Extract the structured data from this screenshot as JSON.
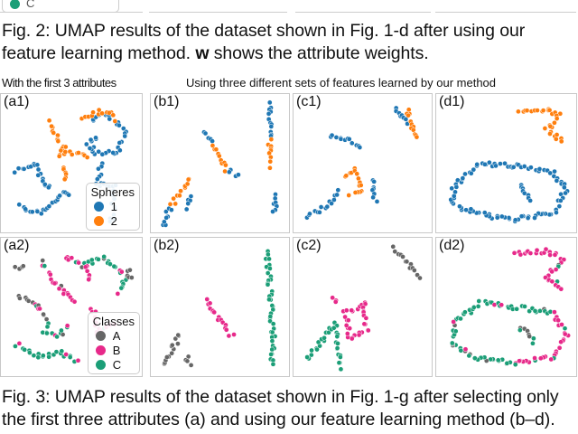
{
  "top_fragment": {
    "legend_entry": "C"
  },
  "fig2_caption": {
    "line1": "Fig. 2: UMAP results of the dataset shown in Fig. 1-d after using our",
    "line2_pre": "feature learning method. ",
    "line2_bold": "w",
    "line2_post": " shows the attribute weights."
  },
  "headers": {
    "left": "With the first 3 attributes",
    "right": "Using three different sets of features learned by our method"
  },
  "colors": {
    "sphere_1": "#1f77b4",
    "sphere_2": "#ff7f0e",
    "class_A": "#666666",
    "class_B": "#e7298a",
    "class_C": "#1b9e77"
  },
  "legends": {
    "spheres": {
      "title": "Spheres",
      "items": [
        "1",
        "2"
      ]
    },
    "classes": {
      "title": "Classes",
      "items": [
        "A",
        "B",
        "C"
      ]
    }
  },
  "chart_data": [
    {
      "type": "scatter",
      "panel": "(a1)",
      "color_by": "spheres",
      "strokes": [
        {
          "c": 0,
          "p": [
            [
              0.8,
              5.5
            ],
            [
              2.2,
              5.0
            ],
            [
              2.8,
              6.5
            ],
            [
              3.5,
              7.0
            ]
          ]
        },
        {
          "c": 0,
          "p": [
            [
              1,
              8.2
            ],
            [
              2,
              8.8
            ],
            [
              3,
              8.6
            ],
            [
              4.2,
              7.2
            ],
            [
              5,
              7.5
            ]
          ]
        },
        {
          "c": 0,
          "p": [
            [
              6.5,
              1.5
            ],
            [
              7.8,
              1.2
            ],
            [
              9,
              2.5
            ],
            [
              8.5,
              4.0
            ],
            [
              7,
              4.2
            ],
            [
              6,
              3.5
            ],
            [
              7,
              2.8
            ]
          ]
        },
        {
          "c": 0,
          "p": [
            [
              7.2,
              5.0
            ],
            [
              6.8,
              6.5
            ],
            [
              8.2,
              6.8
            ],
            [
              8,
              9.8
            ]
          ]
        },
        {
          "c": 1,
          "p": [
            [
              3.4,
              1.8
            ],
            [
              3.8,
              3.0
            ],
            [
              4.5,
              3.8
            ],
            [
              4.0,
              4.4
            ],
            [
              5.5,
              4.0
            ],
            [
              6.3,
              4.6
            ]
          ]
        },
        {
          "c": 1,
          "p": [
            [
              5.7,
              1.4
            ],
            [
              6.6,
              1.0
            ],
            [
              7.8,
              0.9
            ],
            [
              8.2,
              1.8
            ]
          ]
        },
        {
          "c": 1,
          "p": [
            [
              4.3,
              5.2
            ],
            [
              4.5,
              6.5
            ]
          ]
        }
      ]
    },
    {
      "type": "scatter",
      "panel": "(b1)",
      "color_by": "spheres",
      "strokes": [
        {
          "c": 0,
          "p": [
            [
              0.5,
              9.8
            ],
            [
              1.2,
              8.2
            ]
          ]
        },
        {
          "c": 1,
          "p": [
            [
              1.2,
              8.2
            ],
            [
              2.2,
              6.6
            ],
            [
              2.8,
              6.0
            ]
          ]
        },
        {
          "c": 0,
          "p": [
            [
              3.8,
              2.5
            ],
            [
              4.3,
              3.6
            ]
          ]
        },
        {
          "c": 1,
          "p": [
            [
              4.3,
              3.6
            ],
            [
              5.0,
              4.8
            ],
            [
              5.6,
              5.6
            ]
          ]
        },
        {
          "c": 0,
          "p": [
            [
              5.6,
              5.6
            ],
            [
              6.4,
              6.0
            ]
          ]
        },
        {
          "c": 0,
          "p": [
            [
              8.9,
              0.4
            ],
            [
              8.8,
              3.0
            ]
          ]
        },
        {
          "c": 1,
          "p": [
            [
              8.8,
              3.2
            ],
            [
              9.0,
              5.4
            ]
          ]
        },
        {
          "c": 0,
          "p": [
            [
              9.1,
              7.5
            ],
            [
              9.2,
              9.0
            ]
          ]
        },
        {
          "c": 0,
          "p": [
            [
              2.6,
              7.4
            ],
            [
              2.4,
              8.6
            ]
          ]
        }
      ]
    },
    {
      "type": "scatter",
      "panel": "(c1)",
      "color_by": "spheres",
      "strokes": [
        {
          "c": 0,
          "p": [
            [
              7.4,
              0.6
            ],
            [
              8.4,
              2.0
            ]
          ]
        },
        {
          "c": 1,
          "p": [
            [
              8.4,
              0.8
            ],
            [
              8.8,
              2.2
            ],
            [
              9.2,
              3.2
            ]
          ]
        },
        {
          "c": 0,
          "p": [
            [
              2.4,
              2.8
            ],
            [
              4.0,
              3.2
            ],
            [
              5.0,
              4.0
            ]
          ]
        },
        {
          "c": 1,
          "p": [
            [
              3.6,
              6.0
            ],
            [
              4.4,
              5.4
            ],
            [
              4.8,
              7.0
            ],
            [
              3.8,
              7.6
            ]
          ]
        },
        {
          "c": 0,
          "p": [
            [
              0.5,
              9.0
            ],
            [
              2.0,
              8.4
            ],
            [
              3.2,
              7.0
            ]
          ]
        },
        {
          "c": 0,
          "p": [
            [
              5.6,
              6.2
            ],
            [
              6.0,
              8.0
            ]
          ]
        }
      ]
    },
    {
      "type": "scatter",
      "panel": "(d1)",
      "color_by": "spheres",
      "strokes": [
        {
          "c": 1,
          "p": [
            [
              6.0,
              1.0
            ],
            [
              8.0,
              0.7
            ],
            [
              9.0,
              1.2
            ],
            [
              8.0,
              2.4
            ],
            [
              9.4,
              3.4
            ]
          ]
        },
        {
          "c": 0,
          "p": [
            [
              1.0,
              6.5
            ],
            [
              3.0,
              5.0
            ],
            [
              6.0,
              5.2
            ],
            [
              8.5,
              5.6
            ],
            [
              9.5,
              7.0
            ],
            [
              8.5,
              8.8
            ],
            [
              5.5,
              9.3
            ],
            [
              2.5,
              8.8
            ],
            [
              0.8,
              8.0
            ],
            [
              1.0,
              6.5
            ]
          ]
        },
        {
          "c": 0,
          "p": [
            [
              6.0,
              6.5
            ],
            [
              7.0,
              8.0
            ]
          ]
        }
      ]
    },
    {
      "type": "scatter",
      "panel": "(a2)",
      "color_by": "classes",
      "strokes": [
        {
          "c": 0,
          "p": [
            [
              0.8,
              2.0
            ],
            [
              1.5,
              1.5
            ]
          ]
        },
        {
          "c": 1,
          "p": [
            [
              2.8,
              1.5
            ],
            [
              3.5,
              3.0
            ],
            [
              4.5,
              3.8
            ],
            [
              5.5,
              4.5
            ]
          ]
        },
        {
          "c": 2,
          "p": [
            [
              6.0,
              1.5
            ],
            [
              7.5,
              1.2
            ],
            [
              9.0,
              2.5
            ],
            [
              8.5,
              4.0
            ]
          ]
        },
        {
          "c": 1,
          "p": [
            [
              4.5,
              1.0
            ],
            [
              6.0,
              1.8
            ],
            [
              6.5,
              3.0
            ]
          ]
        },
        {
          "c": 0,
          "p": [
            [
              1.0,
              4.0
            ],
            [
              2.5,
              4.8
            ],
            [
              3.2,
              6.5
            ]
          ]
        },
        {
          "c": 2,
          "p": [
            [
              0.8,
              7.8
            ],
            [
              2.5,
              8.8
            ],
            [
              4.2,
              8.5
            ],
            [
              5.5,
              9.2
            ]
          ]
        },
        {
          "c": 1,
          "p": [
            [
              6.5,
              5.0
            ],
            [
              7.0,
              7.0
            ],
            [
              8.5,
              6.0
            ]
          ]
        },
        {
          "c": 0,
          "p": [
            [
              9.2,
              2.0
            ],
            [
              9.5,
              3.0
            ]
          ]
        },
        {
          "c": 2,
          "p": [
            [
              2.8,
              6.8
            ],
            [
              3.8,
              7.2
            ],
            [
              4.8,
              6.4
            ]
          ]
        }
      ]
    },
    {
      "type": "scatter",
      "panel": "(b2)",
      "color_by": "classes",
      "strokes": [
        {
          "c": 0,
          "p": [
            [
              0.6,
              9.5
            ],
            [
              1.4,
              7.8
            ],
            [
              1.9,
              6.8
            ]
          ]
        },
        {
          "c": 0,
          "p": [
            [
              2.4,
              8.8
            ],
            [
              2.6,
              9.6
            ]
          ]
        },
        {
          "c": 1,
          "p": [
            [
              3.8,
              4.5
            ],
            [
              4.8,
              5.6
            ],
            [
              5.4,
              6.6
            ],
            [
              6.0,
              7.4
            ]
          ]
        },
        {
          "c": 2,
          "p": [
            [
              8.6,
              0.6
            ],
            [
              8.8,
              3.6
            ],
            [
              8.9,
              5.6
            ],
            [
              9.1,
              7.0
            ],
            [
              9.0,
              9.6
            ]
          ]
        }
      ]
    },
    {
      "type": "scatter",
      "panel": "(c2)",
      "color_by": "classes",
      "strokes": [
        {
          "c": 0,
          "p": [
            [
              7.4,
              0.4
            ],
            [
              8.6,
              1.6
            ],
            [
              9.4,
              2.8
            ]
          ]
        },
        {
          "c": 1,
          "p": [
            [
              3.6,
              5.4
            ],
            [
              5.0,
              4.6
            ],
            [
              5.2,
              6.8
            ],
            [
              4.0,
              7.4
            ],
            [
              3.6,
              5.4
            ]
          ]
        },
        {
          "c": 1,
          "p": [
            [
              2.6,
              4.2
            ],
            [
              3.2,
              4.6
            ]
          ]
        },
        {
          "c": 2,
          "p": [
            [
              0.6,
              8.8
            ],
            [
              1.8,
              7.6
            ],
            [
              2.8,
              6.2
            ],
            [
              3.2,
              9.8
            ]
          ]
        }
      ]
    },
    {
      "type": "scatter",
      "panel": "(d2)",
      "color_by": "classes",
      "strokes": [
        {
          "c": 1,
          "p": [
            [
              5.6,
              0.8
            ],
            [
              8.0,
              0.6
            ],
            [
              9.2,
              1.2
            ],
            [
              8.0,
              2.6
            ],
            [
              9.4,
              3.6
            ]
          ]
        },
        {
          "c": 2,
          "p": [
            [
              1.0,
              6.0
            ],
            [
              3.0,
              4.6
            ],
            [
              6.0,
              5.0
            ],
            [
              8.6,
              5.4
            ]
          ]
        },
        {
          "c": 1,
          "p": [
            [
              8.6,
              5.4
            ],
            [
              9.5,
              7.0
            ],
            [
              8.5,
              8.8
            ],
            [
              5.5,
              9.3
            ]
          ]
        },
        {
          "c": 2,
          "p": [
            [
              5.5,
              9.3
            ],
            [
              2.5,
              8.8
            ],
            [
              0.8,
              7.8
            ],
            [
              1.0,
              6.0
            ]
          ]
        },
        {
          "c": 0,
          "p": [
            [
              6.0,
              6.4
            ],
            [
              7.2,
              7.8
            ]
          ]
        }
      ]
    }
  ],
  "fig3_caption": {
    "line1": "Fig. 3: UMAP results of the dataset shown in Fig. 1-g after selecting only",
    "line2": "the first three attributes (a) and using our feature learning method (b–d)."
  }
}
